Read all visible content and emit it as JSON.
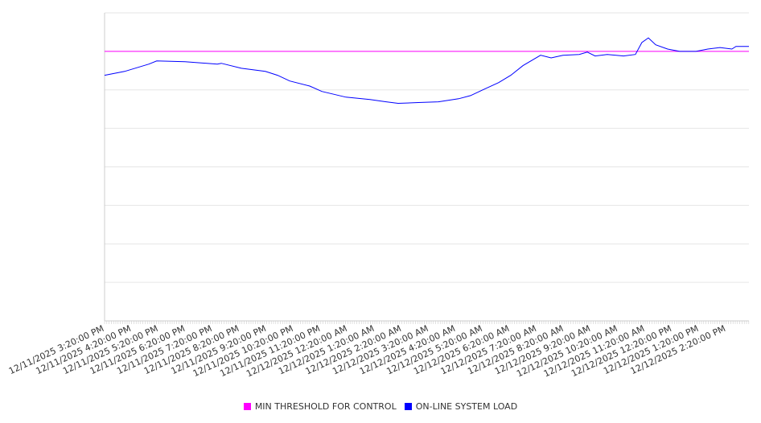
{
  "chart_data": {
    "type": "line",
    "title": "",
    "xlabel": "",
    "ylabel": "",
    "ylim": [
      0,
      8
    ],
    "grid": true,
    "legend_position": "bottom",
    "x_tick_labels": [
      "12/11/2025 3:20:00 PM",
      "12/11/2025 4:20:00 PM",
      "12/11/2025 5:20:00 PM",
      "12/11/2025 6:20:00 PM",
      "12/11/2025 7:20:00 PM",
      "12/11/2025 8:20:00 PM",
      "12/11/2025 9:20:00 PM",
      "12/11/2025 10:20:00 PM",
      "12/11/2025 11:20:00 PM",
      "12/12/2025 12:20:00 AM",
      "12/12/2025 1:20:00 AM",
      "12/12/2025 2:20:00 AM",
      "12/12/2025 3:20:00 AM",
      "12/12/2025 4:20:00 AM",
      "12/12/2025 5:20:00 AM",
      "12/12/2025 6:20:00 AM",
      "12/12/2025 7:20:00 AM",
      "12/12/2025 8:20:00 AM",
      "12/12/2025 9:20:00 AM",
      "12/12/2025 10:20:00 AM",
      "12/12/2025 11:20:00 AM",
      "12/12/2025 12:20:00 PM",
      "12/12/2025 1:20:00 PM",
      "12/12/2025 2:20:00 PM"
    ],
    "x_range_hours": [
      0,
      23.84
    ],
    "series": [
      {
        "name": "MIN THRESHOLD FOR CONTROL",
        "color": "#ff00ff",
        "x_hours": [
          0,
          23.84
        ],
        "values": [
          7.0,
          7.0
        ]
      },
      {
        "name": "ON-LINE SYSTEM LOAD",
        "color": "#0000ff",
        "x_hours": [
          0,
          0.74,
          1.64,
          1.93,
          2.98,
          4.17,
          4.32,
          5.06,
          5.95,
          6.4,
          6.85,
          7.59,
          8.04,
          8.93,
          9.82,
          10.42,
          10.86,
          11.61,
          12.35,
          13.1,
          13.54,
          13.99,
          14.58,
          15.03,
          15.48,
          16.13,
          16.52,
          16.96,
          17.56,
          17.86,
          18.15,
          18.6,
          19.2,
          19.64,
          19.88,
          20.12,
          20.39,
          20.83,
          21.28,
          21.88,
          22.32,
          22.77,
          23.21,
          23.36,
          23.84
        ],
        "values": [
          6.38,
          6.48,
          6.67,
          6.75,
          6.73,
          6.67,
          6.69,
          6.56,
          6.48,
          6.38,
          6.23,
          6.1,
          5.96,
          5.81,
          5.75,
          5.69,
          5.65,
          5.67,
          5.69,
          5.77,
          5.85,
          6.0,
          6.19,
          6.38,
          6.63,
          6.9,
          6.83,
          6.9,
          6.92,
          6.98,
          6.88,
          6.92,
          6.88,
          6.92,
          7.23,
          7.35,
          7.17,
          7.06,
          7.0,
          7.0,
          7.06,
          7.1,
          7.06,
          7.13,
          7.13
        ]
      }
    ]
  }
}
